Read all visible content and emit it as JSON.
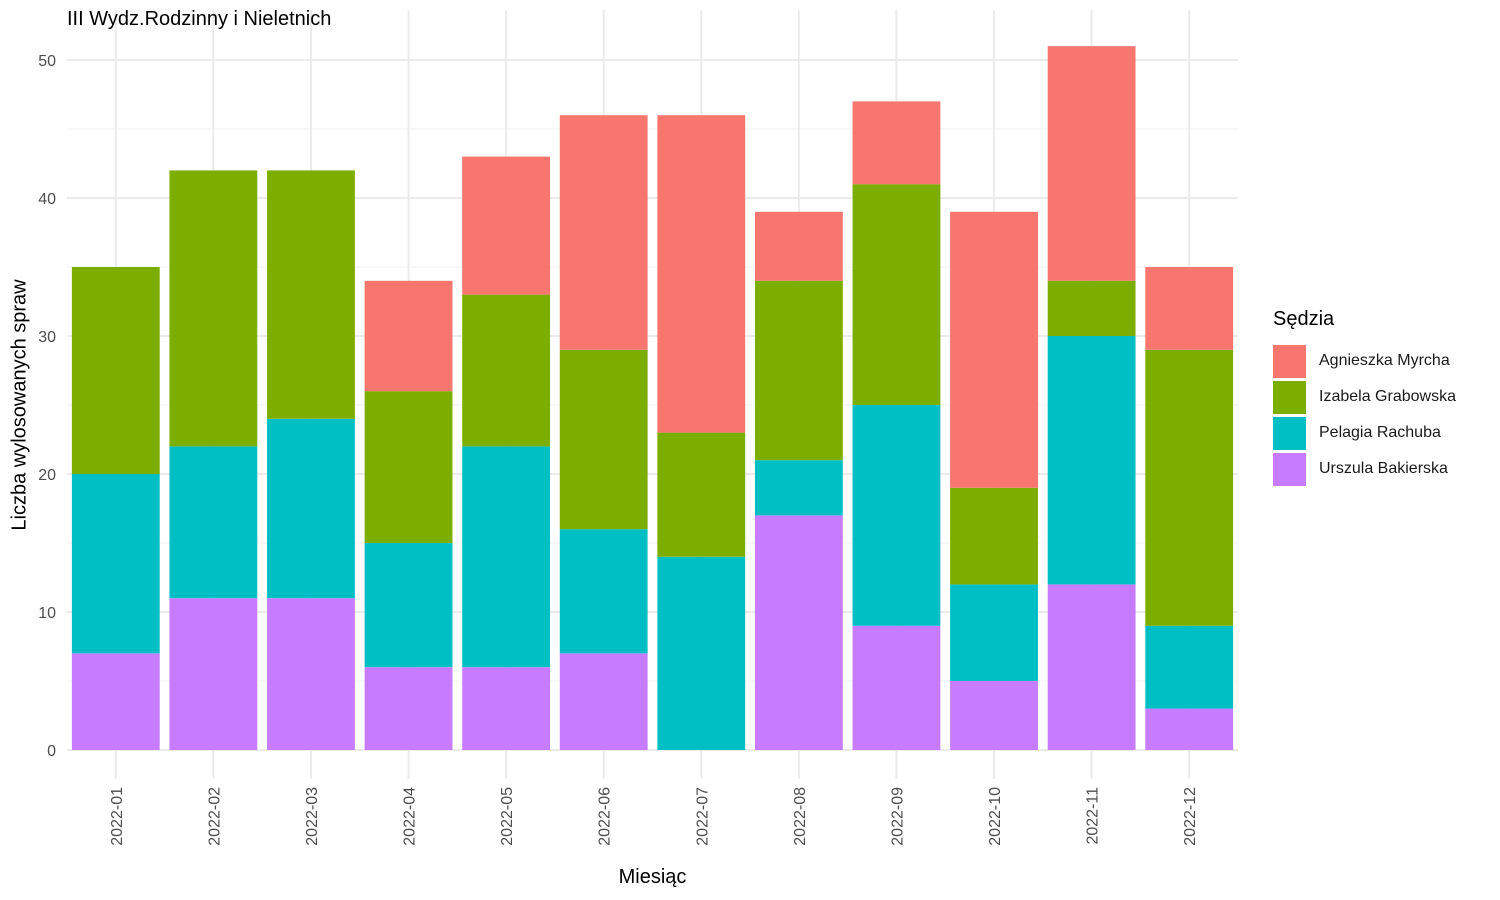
{
  "chart_data": {
    "type": "bar",
    "stacked": true,
    "title": "III Wydz.Rodzinny i Nieletnich",
    "xlabel": "Miesiąc",
    "ylabel": "Liczba wylosowanych spraw",
    "ylim": [
      0,
      52
    ],
    "yticks": [
      0,
      10,
      20,
      30,
      40,
      50
    ],
    "grid": true,
    "legend_title": "Sędzia",
    "legend_position": "right",
    "categories": [
      "2022-01",
      "2022-02",
      "2022-03",
      "2022-04",
      "2022-05",
      "2022-06",
      "2022-07",
      "2022-08",
      "2022-09",
      "2022-10",
      "2022-11",
      "2022-12"
    ],
    "series": [
      {
        "name": "Urszula Bakierska",
        "color": "#C77CFF",
        "values": [
          7,
          11,
          11,
          6,
          6,
          7,
          0,
          17,
          9,
          5,
          12,
          3
        ]
      },
      {
        "name": "Pelagia Rachuba",
        "color": "#00BFC4",
        "values": [
          13,
          11,
          13,
          9,
          16,
          9,
          14,
          4,
          16,
          7,
          18,
          6
        ]
      },
      {
        "name": "Izabela Grabowska",
        "color": "#7CAE00",
        "values": [
          15,
          20,
          18,
          11,
          11,
          13,
          9,
          13,
          16,
          7,
          4,
          20
        ]
      },
      {
        "name": "Agnieszka Myrcha",
        "color": "#F8766D",
        "values": [
          0,
          0,
          0,
          8,
          10,
          17,
          23,
          5,
          6,
          20,
          17,
          6
        ]
      }
    ],
    "legend_order": [
      "Agnieszka Myrcha",
      "Izabela Grabowska",
      "Pelagia Rachuba",
      "Urszula Bakierska"
    ]
  }
}
